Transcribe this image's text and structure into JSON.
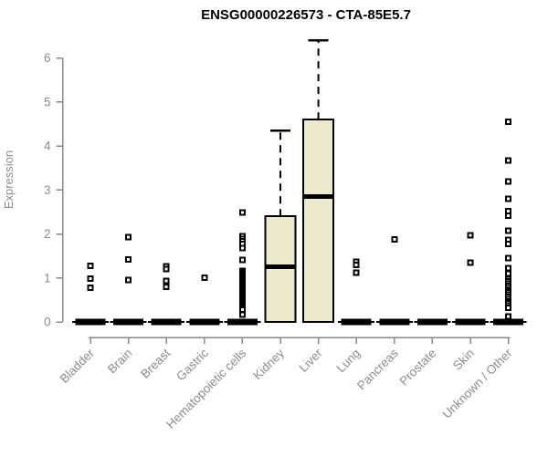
{
  "chart_data": {
    "type": "boxplot",
    "title": "ENSG00000226573 - CTA-85E5.7",
    "ylabel": "Expression",
    "xlabel": "",
    "yticks": [
      0,
      1,
      2,
      3,
      4,
      5,
      6
    ],
    "ylim": [
      0,
      6.6
    ],
    "grid": false,
    "legend": "none",
    "categories": [
      "Bladder",
      "Brain",
      "Breast",
      "Gastric",
      "Hematopoietic cells",
      "Kidney",
      "Liver",
      "Lung",
      "Pancreas",
      "Prostate",
      "Skin",
      "Unknown / Other"
    ],
    "boxes": [
      {
        "category": "Bladder",
        "q1": 0,
        "median": 0,
        "q3": 0,
        "whisker_low": 0,
        "whisker_high": 0,
        "outliers": [
          1.27,
          0.98,
          0.78
        ]
      },
      {
        "category": "Brain",
        "q1": 0,
        "median": 0,
        "q3": 0,
        "whisker_low": 0,
        "whisker_high": 0,
        "outliers": [
          1.93,
          1.42,
          0.95
        ]
      },
      {
        "category": "Breast",
        "q1": 0,
        "median": 0,
        "q3": 0,
        "whisker_low": 0,
        "whisker_high": 0,
        "outliers": [
          1.26,
          1.2,
          0.93,
          0.8
        ]
      },
      {
        "category": "Gastric",
        "q1": 0,
        "median": 0,
        "q3": 0,
        "whisker_low": 0,
        "whisker_high": 0,
        "outliers": [
          1.01
        ]
      },
      {
        "category": "Hematopoietic cells",
        "q1": 0,
        "median": 0,
        "q3": 0,
        "whisker_low": 0,
        "whisker_high": 0,
        "outliers": [
          2.49,
          1.95,
          1.89,
          1.83,
          1.77,
          1.68,
          1.41,
          1.16,
          1.12,
          1.08,
          1.04,
          1.0,
          0.96,
          0.92,
          0.88,
          0.84,
          0.8,
          0.76,
          0.72,
          0.68,
          0.64,
          0.6,
          0.56,
          0.52,
          0.48,
          0.44,
          0.4,
          0.36,
          0.32,
          0.28,
          0.17
        ]
      },
      {
        "category": "Kidney",
        "q1": 0,
        "median": 1.25,
        "q3": 2.4,
        "whisker_low": 0,
        "whisker_high": 4.35,
        "outliers": []
      },
      {
        "category": "Liver",
        "q1": 0,
        "median": 2.85,
        "q3": 4.6,
        "whisker_low": 0,
        "whisker_high": 6.4,
        "outliers": []
      },
      {
        "category": "Lung",
        "q1": 0,
        "median": 0,
        "q3": 0,
        "whisker_low": 0,
        "whisker_high": 0,
        "outliers": [
          1.37,
          1.3,
          1.12
        ]
      },
      {
        "category": "Pancreas",
        "q1": 0,
        "median": 0,
        "q3": 0,
        "whisker_low": 0,
        "whisker_high": 0,
        "outliers": [
          1.88
        ]
      },
      {
        "category": "Prostate",
        "q1": 0,
        "median": 0,
        "q3": 0,
        "whisker_low": 0,
        "whisker_high": 0,
        "outliers": []
      },
      {
        "category": "Skin",
        "q1": 0,
        "median": 0,
        "q3": 0,
        "whisker_low": 0,
        "whisker_high": 0,
        "outliers": [
          1.97,
          1.35
        ]
      },
      {
        "category": "Unknown / Other",
        "q1": 0,
        "median": 0,
        "q3": 0,
        "whisker_low": 0,
        "whisker_high": 0,
        "outliers": [
          4.55,
          3.67,
          3.19,
          2.8,
          2.52,
          2.42,
          2.07,
          1.87,
          1.77,
          1.45,
          1.22,
          1.1,
          0.97,
          0.92,
          0.87,
          0.82,
          0.77,
          0.72,
          0.67,
          0.62,
          0.57,
          0.52,
          0.47,
          0.42,
          0.37,
          0.32,
          0.12
        ]
      }
    ],
    "colors": {
      "box_fill": "#EDE9CC",
      "box_border": "#000000",
      "median": "#000000",
      "whisker": "#000000",
      "outlier": "#000000",
      "axis": "#888888",
      "tick_label": "#8c8c8c",
      "title": "#000000",
      "background": "#ffffff"
    }
  }
}
